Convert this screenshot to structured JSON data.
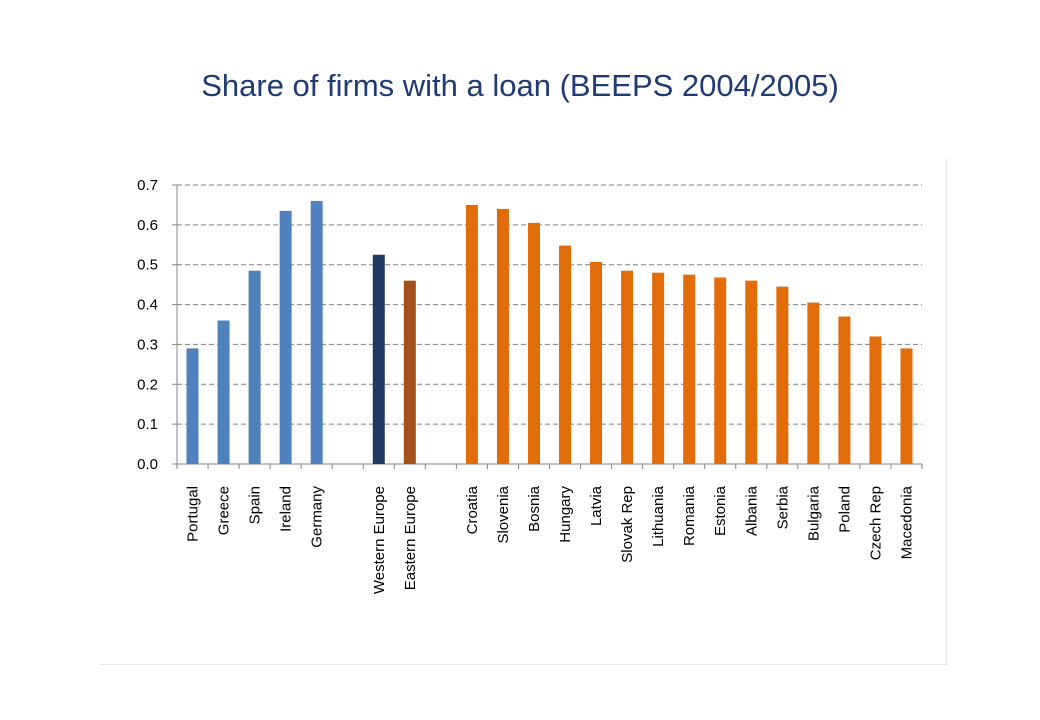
{
  "title": "Share of firms with a loan (BEEPS 2004/2005)",
  "colors": {
    "title": "#1f3a78",
    "western_countries": "#4f81bd",
    "western_europe": "#1f3864",
    "eastern_europe": "#a3511c",
    "eastern_countries": "#e36c0a",
    "grid": "#808080",
    "axis": "#868686",
    "text": "#000000"
  },
  "chart_data": {
    "type": "bar",
    "title": "",
    "xlabel": "",
    "ylabel": "",
    "ylim": [
      0.0,
      0.7
    ],
    "y_ticks": [
      "0.0",
      "0.1",
      "0.2",
      "0.3",
      "0.4",
      "0.5",
      "0.6",
      "0.7"
    ],
    "grid": true,
    "legend": "none",
    "categories": [
      "Portugal",
      "Greece",
      "Spain",
      "Ireland",
      "Germany",
      "",
      "Western Europe",
      "Eastern Europe",
      "",
      "Croatia",
      "Slovenia",
      "Bosnia",
      "Hungary",
      "Latvia",
      "Slovak Rep",
      "Lithuania",
      "Romania",
      "Estonia",
      "Albania",
      "Serbia",
      "Bulgaria",
      "Poland",
      "Czech Rep",
      "Macedonia"
    ],
    "values": [
      0.29,
      0.36,
      0.485,
      0.635,
      0.66,
      null,
      0.525,
      0.46,
      null,
      0.65,
      0.64,
      0.605,
      0.548,
      0.507,
      0.485,
      0.48,
      0.475,
      0.468,
      0.46,
      0.445,
      0.405,
      0.37,
      0.32,
      0.29
    ],
    "bar_colors": [
      "western_countries",
      "western_countries",
      "western_countries",
      "western_countries",
      "western_countries",
      "",
      "western_europe",
      "eastern_europe",
      "",
      "eastern_countries",
      "eastern_countries",
      "eastern_countries",
      "eastern_countries",
      "eastern_countries",
      "eastern_countries",
      "eastern_countries",
      "eastern_countries",
      "eastern_countries",
      "eastern_countries",
      "eastern_countries",
      "eastern_countries",
      "eastern_countries",
      "eastern_countries",
      "eastern_countries"
    ]
  }
}
